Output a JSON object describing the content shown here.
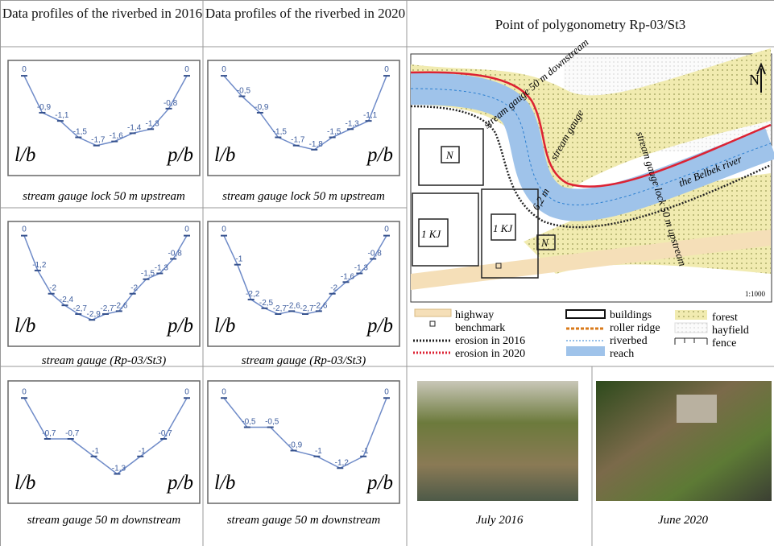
{
  "header": {
    "col1": "Data profiles of the riverbed in 2016",
    "col2": "Data profiles of the riverbed in 2020",
    "col3": "Point of polygonometry Rp-03/St3"
  },
  "chart_data": [
    {
      "type": "line",
      "caption": "stream gauge lock 50 m upstream",
      "left_label": "l/b",
      "right_label": "p/b",
      "color": "#6f8bc8",
      "ylim": [
        -2,
        0.1
      ],
      "categories": [
        null,
        null,
        null,
        null,
        null,
        null,
        null,
        null,
        null,
        null
      ],
      "values": [
        0,
        -0.9,
        -1.1,
        -1.5,
        -1.7,
        -1.6,
        -1.4,
        -1.3,
        -0.8,
        0
      ],
      "value_labels": [
        "0",
        "-0,9",
        "-1,1",
        "-1,5",
        "-1,7",
        "-1,6",
        "-1,4",
        "-1,3",
        "-0,8",
        "0"
      ]
    },
    {
      "type": "line",
      "caption": "stream gauge lock 50 m upstream",
      "left_label": "l/b",
      "right_label": "p/b",
      "color": "#6f8bc8",
      "ylim": [
        -2,
        0.1
      ],
      "categories": [
        null,
        null,
        null,
        null,
        null,
        null,
        null,
        null,
        null,
        null
      ],
      "values": [
        0,
        -0.5,
        -0.9,
        -1.5,
        -1.7,
        -1.8,
        -1.5,
        -1.3,
        -1.1,
        0
      ],
      "value_labels": [
        "0",
        "-0,5",
        "-0,9",
        "-1,5",
        "-1,7",
        "-1,8",
        "-1,5",
        "-1,3",
        "-1,1",
        "0"
      ]
    },
    {
      "type": "line",
      "caption": "stream gauge (Rp-03/St3)",
      "left_label": "l/b",
      "right_label": "p/b",
      "color": "#6f8bc8",
      "ylim": [
        -3.2,
        0.1
      ],
      "categories": [
        null,
        null,
        null,
        null,
        null,
        null,
        null,
        null,
        null,
        null,
        null,
        null,
        null
      ],
      "values": [
        0,
        -1.2,
        -2,
        -2.4,
        -2.7,
        -2.9,
        -2.7,
        -2.6,
        -2,
        -1.5,
        -1.3,
        -0.8,
        0
      ],
      "value_labels": [
        "0",
        "-1,2",
        "-2",
        "-2,4",
        "-2,7",
        "-2,9",
        "-2,7",
        "-2,6",
        "-2",
        "-1,5",
        "-1,3",
        "-0,8",
        "0"
      ]
    },
    {
      "type": "line",
      "caption": "stream gauge (Rp-03/St3)",
      "left_label": "l/b",
      "right_label": "p/b",
      "color": "#6f8bc8",
      "ylim": [
        -3.2,
        0.1
      ],
      "categories": [
        null,
        null,
        null,
        null,
        null,
        null,
        null,
        null,
        null,
        null,
        null,
        null,
        null
      ],
      "values": [
        0,
        -1,
        -2.2,
        -2.5,
        -2.7,
        -2.6,
        -2.7,
        -2.6,
        -2,
        -1.6,
        -1.3,
        -0.8,
        0
      ],
      "value_labels": [
        "0",
        "-1",
        "-2,2",
        "-2,5",
        "-2,7",
        "-2,6",
        "-2,7",
        "-2,6",
        "-2",
        "-1,6",
        "-1,3",
        "-0,8",
        "0"
      ]
    },
    {
      "type": "line",
      "caption": "stream gauge 50 m downstream",
      "left_label": "l/b",
      "right_label": "p/b",
      "color": "#6f8bc8",
      "ylim": [
        -1.5,
        0.1
      ],
      "categories": [
        null,
        null,
        null,
        null,
        null,
        null,
        null,
        null
      ],
      "values": [
        0,
        -0.7,
        -0.7,
        -1,
        -1.3,
        -1,
        -0.7,
        0
      ],
      "value_labels": [
        "0",
        "-0,7",
        "-0,7",
        "-1",
        "-1,3",
        "-1",
        "-0,7",
        "0"
      ]
    },
    {
      "type": "line",
      "caption": "stream gauge 50 m downstream",
      "left_label": "l/b",
      "right_label": "p/b",
      "color": "#6f8bc8",
      "ylim": [
        -1.5,
        0.1
      ],
      "categories": [
        null,
        null,
        null,
        null,
        null,
        null,
        null,
        null
      ],
      "values": [
        0,
        -0.5,
        -0.5,
        -0.9,
        -1,
        -1.2,
        -1,
        0
      ],
      "value_labels": [
        "0",
        "-0,5",
        "-0,5",
        "-0,9",
        "-1",
        "-1,2",
        "-1",
        "0"
      ]
    }
  ],
  "map": {
    "north": "N",
    "scale": "1:1000",
    "downstream": "stream gauge 50 m downstream",
    "gauge": "stream gauge",
    "upstream": "stream gauge lock 50 m upstream",
    "river": "the Belbek river",
    "width": "6,2 m",
    "building1": "1 KJ",
    "building2": "1 KJ",
    "building3": "N",
    "building4": "N",
    "legend": [
      "highway",
      "benchmark",
      "erosion in 2016",
      "erosion in 2020",
      "buildings",
      "roller ridge",
      "riverbed",
      "reach",
      "forest",
      "hayfield",
      "fence"
    ]
  },
  "photos": [
    "July 2016",
    "June 2020"
  ]
}
